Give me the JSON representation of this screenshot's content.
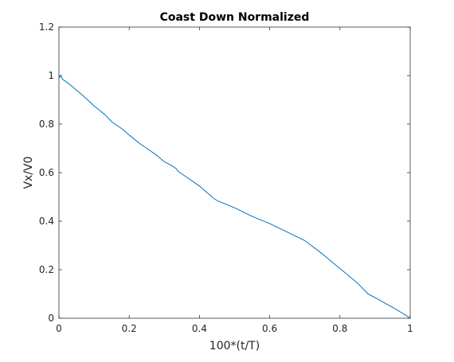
{
  "chart_data": {
    "type": "line",
    "title": "Coast Down Normalized",
    "xlabel": "100*(t/T)",
    "ylabel": "Vx/V0",
    "xlim": [
      0,
      1
    ],
    "ylim": [
      0,
      1.2
    ],
    "xticks": [
      0,
      0.2,
      0.4,
      0.6,
      0.8,
      1
    ],
    "xtick_labels": [
      "0",
      "0.2",
      "0.4",
      "0.6",
      "0.8",
      "1"
    ],
    "yticks": [
      0,
      0.2,
      0.4,
      0.6,
      0.8,
      1,
      1.2
    ],
    "ytick_labels": [
      "0",
      "0.2",
      "0.4",
      "0.6",
      "0.8",
      "1",
      "1.2"
    ],
    "grid": false,
    "series": [
      {
        "color": "#0072BD",
        "x": [
          0,
          0.005,
          0.01,
          0.02,
          0.03,
          0.05,
          0.07,
          0.1,
          0.13,
          0.15,
          0.18,
          0.2,
          0.23,
          0.25,
          0.28,
          0.3,
          0.32,
          0.335,
          0.34,
          0.345,
          0.36,
          0.38,
          0.4,
          0.42,
          0.44,
          0.45,
          0.5,
          0.55,
          0.6,
          0.65,
          0.7,
          0.75,
          0.8,
          0.85,
          0.88,
          0.9,
          0.95,
          0.99,
          1.0
        ],
        "y": [
          0.99,
          1.0,
          0.985,
          0.975,
          0.965,
          0.94,
          0.915,
          0.875,
          0.84,
          0.81,
          0.78,
          0.755,
          0.72,
          0.7,
          0.67,
          0.645,
          0.63,
          0.615,
          0.605,
          0.6,
          0.585,
          0.565,
          0.545,
          0.52,
          0.495,
          0.485,
          0.455,
          0.42,
          0.39,
          0.355,
          0.32,
          0.265,
          0.205,
          0.145,
          0.1,
          0.085,
          0.045,
          0.01,
          0.0
        ]
      }
    ]
  }
}
